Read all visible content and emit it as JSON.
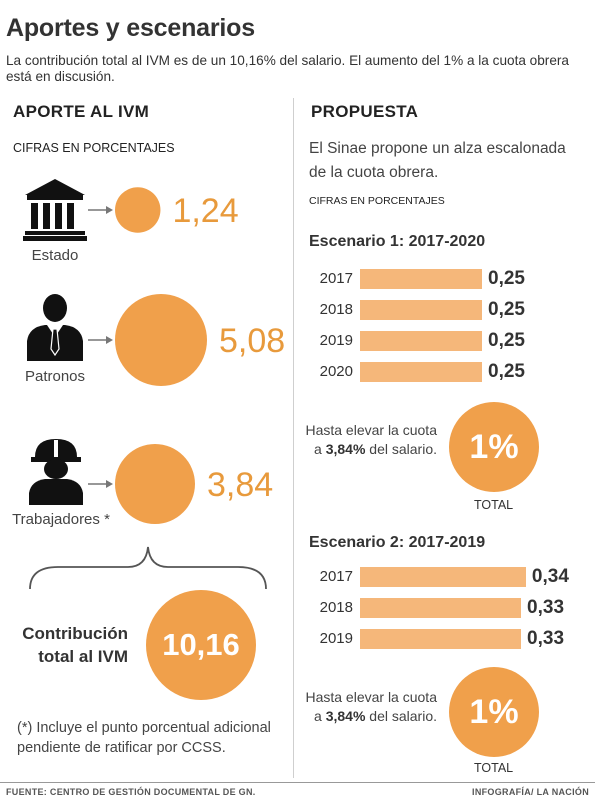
{
  "header": {
    "title": "Aportes y escenarios",
    "subtitle": "La contribución total al IVM es de un 10,16% del salario. El aumento del 1% a la cuota obrera está en discusión."
  },
  "left": {
    "heading": "APORTE AL IVM",
    "cifras": "CIFRAS EN PORCENTAJES",
    "contrib_label": "Contribución total al IVM",
    "total_value": "10,16",
    "footnote": "(*) Incluye el punto porcentual adicional pendiente de ratificar por CCSS."
  },
  "right": {
    "heading": "PROPUESTA",
    "intro": "El Sinae propone un alza escalonada de la cuota obrera.",
    "cifras": "CIFRAS EN PORCENTAJES",
    "scenario1": {
      "title": "Escenario 1: 2017-2020",
      "hasta_prefix": "Hasta elevar la cuota a ",
      "hasta_bold": "3,84%",
      "hasta_suffix": " del salario.",
      "pct": "1%",
      "total_label": "TOTAL"
    },
    "scenario2": {
      "title": "Escenario 2: 2017-2019",
      "hasta_prefix": "Hasta elevar la cuota a ",
      "hasta_bold": "3,84%",
      "hasta_suffix": " del salario.",
      "pct": "1%",
      "total_label": "TOTAL"
    }
  },
  "footer": {
    "source": "FUENTE: CENTRO DE GESTIÓN DOCUMENTAL DE GN.",
    "credit": "INFOGRAFÍA/ LA NACIÓN"
  },
  "colors": {
    "accent": "#f0a04b",
    "bar": "#f5b77a",
    "value_text": "#e89a3c"
  },
  "icons": {
    "estado": "government-building-icon",
    "patronos": "businessman-icon",
    "trabajadores": "worker-hardhat-icon"
  },
  "chart_data": [
    {
      "type": "bubble",
      "title": "APORTE AL IVM",
      "categories": [
        "Estado",
        "Patronos",
        "Trabajadores *"
      ],
      "values": [
        1.24,
        5.08,
        3.84
      ],
      "labels": [
        "1,24",
        "5,08",
        "3,84"
      ],
      "total": 10.16,
      "unit": "CIFRAS EN PORCENTAJES"
    },
    {
      "type": "bar",
      "orientation": "horizontal",
      "title": "Escenario 1: 2017-2020",
      "categories": [
        "2017",
        "2018",
        "2019",
        "2020"
      ],
      "values": [
        0.25,
        0.25,
        0.25,
        0.25
      ],
      "labels": [
        "0,25",
        "0,25",
        "0,25",
        "0,25"
      ],
      "total": 1,
      "unit": "CIFRAS EN PORCENTAJES"
    },
    {
      "type": "bar",
      "orientation": "horizontal",
      "title": "Escenario 2: 2017-2019",
      "categories": [
        "2017",
        "2018",
        "2019"
      ],
      "values": [
        0.34,
        0.33,
        0.33
      ],
      "labels": [
        "0,34",
        "0,33",
        "0,33"
      ],
      "total": 1,
      "unit": "CIFRAS EN PORCENTAJES"
    }
  ]
}
